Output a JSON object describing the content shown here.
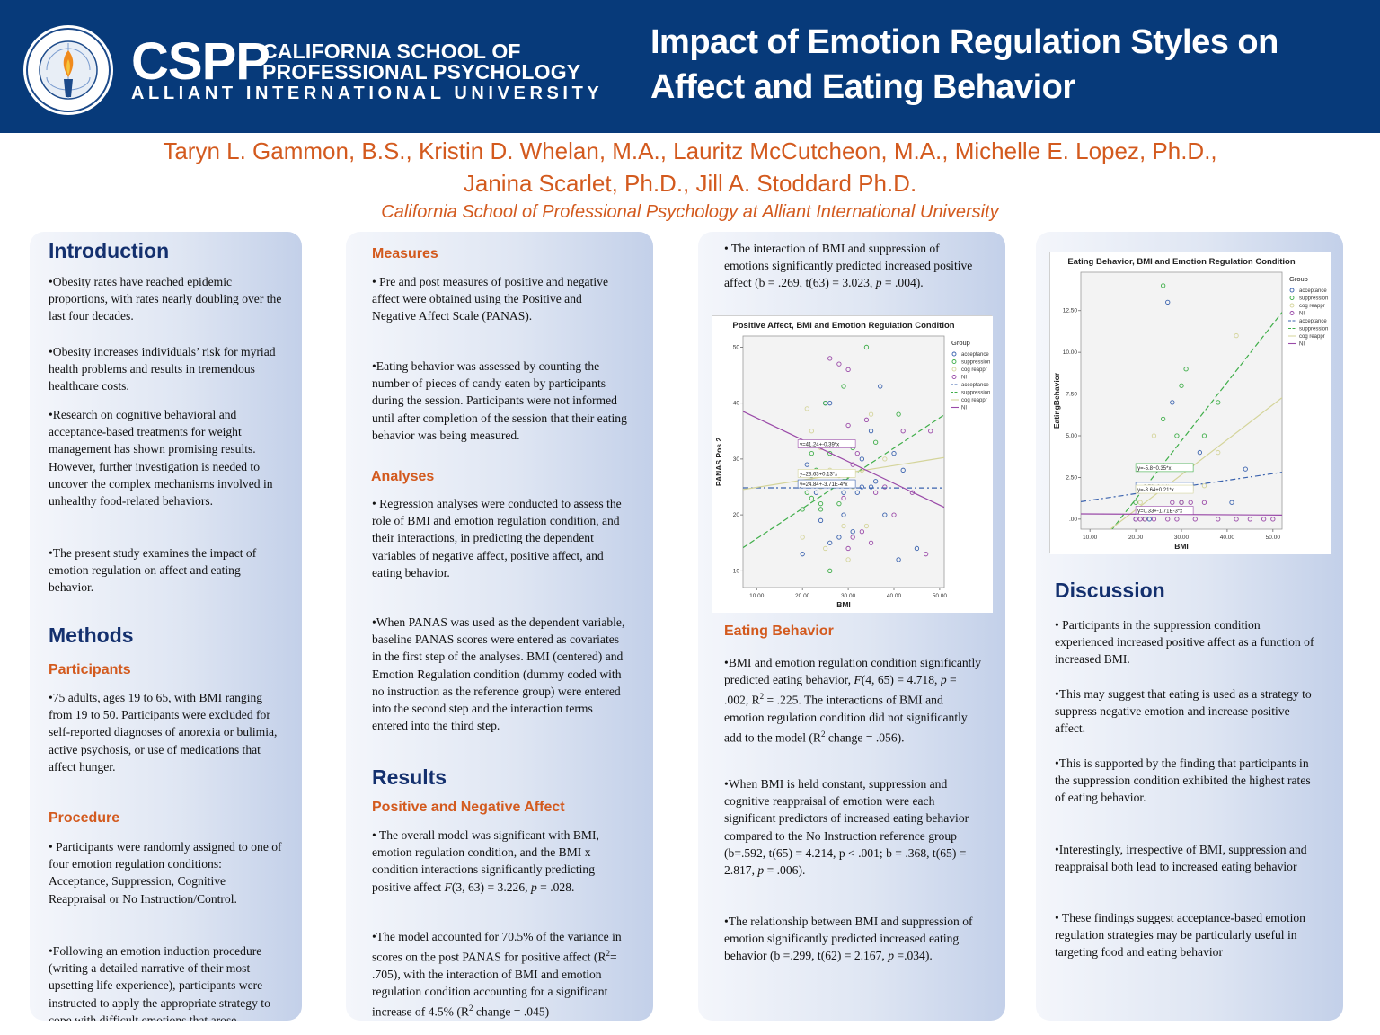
{
  "header": {
    "seal_text": "ALLIANT INTERNATIONAL UNIVERSITY",
    "cspp": "CSPP",
    "school_line1": "CALIFORNIA SCHOOL OF",
    "school_line2": "PROFESSIONAL PSYCHOLOGY",
    "university": "ALLIANT INTERNATIONAL UNIVERSITY",
    "title_line1": "Impact  of Emotion Regulation Styles on",
    "title_line2": "Affect and Eating Behavior",
    "colors": {
      "banner": "#073a7a",
      "accent": "#d35a1e",
      "heading": "#14306e"
    }
  },
  "authors": {
    "line1": "Taryn L. Gammon, B.S., Kristin D. Whelan, M.A., Lauritz McCutcheon, M.A., Michelle E. Lopez, Ph.D.,",
    "line2": "Janina Scarlet, Ph.D., Jill A. Stoddard Ph.D.",
    "affiliation": "California School of Professional Psychology at Alliant International University"
  },
  "col1": {
    "introduction": "Introduction",
    "intro_b1": "•Obesity rates have reached epidemic proportions, with rates nearly doubling over the last four decades.",
    "intro_b2": "•Obesity increases individuals’ risk for myriad health problems and results in tremendous healthcare costs.",
    "intro_b3": "•Research on cognitive behavioral and acceptance-based treatments for weight management has shown promising results. However, further investigation is needed to uncover the complex mechanisms involved in unhealthy food-related behaviors.",
    "intro_b4": "•The present study examines the impact of emotion regulation on affect and eating behavior.",
    "methods": "Methods",
    "participants": "Participants",
    "participants_b1": "•75 adults, ages 19 to 65, with BMI ranging from 19 to 50. Participants were excluded for self-reported diagnoses of anorexia or bulimia, active psychosis, or use of medications that affect hunger.",
    "procedure": "Procedure",
    "procedure_b1": "• Participants were randomly assigned to one of four emotion regulation conditions: Acceptance, Suppression, Cognitive Reappraisal or No Instruction/Control.",
    "procedure_b2": "•Following an emotion induction procedure (writing a detailed narrative of their most upsetting life experience), participants were instructed to apply the appropriate strategy to cope with difficult emotions that arose."
  },
  "col2": {
    "measures": "Measures",
    "measures_b1": "• Pre and post measures of positive and negative affect were obtained using the Positive and Negative Affect Scale (PANAS).",
    "measures_b2": "•Eating behavior was assessed by counting the number of pieces of candy eaten by participants during the session.  Participants were not informed until after completion of the session that their eating behavior was being measured.",
    "analyses": "Analyses",
    "analyses_b1": "• Regression analyses were conducted to assess the role of BMI and emotion regulation condition, and their interactions, in predicting the dependent variables of negative affect, positive affect, and eating behavior.",
    "analyses_b2": "•When PANAS was used as the dependent variable, baseline PANAS scores were entered as covariates in the first step of the analyses.  BMI (centered) and Emotion Regulation condition (dummy coded with no instruction as the reference group) were entered into the second step and the interaction terms entered into the third step.",
    "results": "Results",
    "pos_neg": "Positive and Negative Affect",
    "results_b1_pre": "• The overall model was significant with BMI, emotion regulation condition, and the BMI x condition interactions significantly predicting positive affect ",
    "results_b1_f": "F",
    "results_b1_mid": "(3, 63) = 3.226, ",
    "results_b1_p": "p",
    "results_b1_post": " = .028.",
    "results_b2_pre": "•The model accounted for 70.5% of the variance in scores on the post PANAS for positive affect (R",
    "results_b2_sup": "2",
    "results_b2_mid": "= .705), with the interaction of BMI and emotion regulation condition accounting for a significant increase of 4.5% (R",
    "results_b2_sup2": "2",
    "results_b2_post": " change = .045)"
  },
  "col3": {
    "interaction_pre": "• The interaction of BMI and suppression of emotions significantly predicted increased positive affect (b = .269, t(63) = 3.023, ",
    "interaction_p": "p",
    "interaction_post": " = .004).",
    "eating_behavior": "Eating Behavior",
    "eb_b1_pre": "•BMI and emotion regulation condition significantly predicted eating behavior, ",
    "eb_b1_f": "F",
    "eb_b1_mid": "(4, 65) = 4.718, ",
    "eb_b1_p": "p",
    "eb_b1_mid2": "  = .002, R",
    "eb_b1_sup": "2",
    "eb_b1_mid3": " = .225. The interactions of BMI and emotion regulation condition did not significantly add to the model (R",
    "eb_b1_sup2": "2",
    "eb_b1_post": " change = .056).",
    "eb_b2_pre": "•When BMI is held constant, suppression and cognitive reappraisal of emotion were each significant predictors of increased eating behavior compared to the No Instruction reference group (b=.592, t(65) = 4.214, p < .001; b = .368, t(65) = 2.817, ",
    "eb_b2_p": "p",
    "eb_b2_post": " = .006).",
    "eb_b3_pre": "•The relationship between BMI and suppression of emotion significantly predicted increased eating behavior (b =.299, t(62) = 2.167, ",
    "eb_b3_p": "p",
    "eb_b3_post": " =.034)."
  },
  "col4": {
    "discussion": "Discussion",
    "disc_b1": "• Participants in the suppression condition experienced increased positive affect as a function of increased BMI.",
    "disc_b2": "•This may suggest that eating is used as a strategy to suppress negative emotion and increase positive affect.",
    "disc_b3": "•This is supported by the finding that participants in the suppression condition exhibited the highest rates of eating behavior.",
    "disc_b4": "•Interestingly, irrespective of BMI, suppression and reappraisal both lead to increased eating behavior",
    "disc_b5": "• These findings suggest acceptance-based emotion regulation strategies may be particularly useful in targeting food and eating behavior"
  },
  "chart_data": [
    {
      "type": "scatter",
      "title": "Positive Affect, BMI and Emotion Regulation Condition",
      "xlabel": "BMI",
      "ylabel": "PANAS Pos 2",
      "xlim": [
        7,
        51
      ],
      "ylim": [
        7,
        52
      ],
      "xticks": [
        "10.00",
        "20.00",
        "30.00",
        "40.00",
        "50.00"
      ],
      "xtick_values": [
        10,
        20,
        30,
        40,
        50
      ],
      "yticks": [
        "10",
        "20",
        "30",
        "40",
        "50"
      ],
      "ytick_values": [
        10,
        20,
        30,
        40,
        50
      ],
      "legend_title": "Group",
      "legend_position": "right",
      "legend": [
        "acceptance",
        "suppression",
        "cog reappr",
        "NI",
        "acceptance",
        "suppression",
        "cog reappr",
        "NI"
      ],
      "series": [
        {
          "name": "acceptance",
          "color": "#3a62ae",
          "points": [
            [
              25,
              40
            ],
            [
              26,
              40
            ],
            [
              29,
              20
            ],
            [
              28,
              16
            ],
            [
              32,
              24
            ],
            [
              35,
              35
            ],
            [
              37,
              43
            ],
            [
              33,
              25
            ],
            [
              23,
              24
            ],
            [
              26,
              15
            ],
            [
              20,
              13
            ],
            [
              41,
              12
            ],
            [
              42,
              28
            ],
            [
              45,
              14
            ],
            [
              38,
              20
            ],
            [
              31,
              17
            ],
            [
              35,
              25
            ],
            [
              22,
              27
            ],
            [
              21,
              29
            ],
            [
              27,
              33
            ],
            [
              24,
              19
            ],
            [
              33,
              30
            ],
            [
              36,
              26
            ],
            [
              29,
              24
            ],
            [
              40,
              31
            ]
          ]
        },
        {
          "name": "suppression",
          "color": "#3fae49",
          "points": [
            [
              34,
              50
            ],
            [
              29,
              43
            ],
            [
              22,
              23
            ],
            [
              26,
              31
            ],
            [
              20,
              21
            ],
            [
              24,
              21
            ],
            [
              31,
              32
            ],
            [
              28,
              22
            ],
            [
              21,
              24
            ],
            [
              22,
              31
            ],
            [
              25,
              40
            ],
            [
              23,
              28
            ],
            [
              21,
              33
            ],
            [
              30,
              27
            ],
            [
              26,
              10
            ],
            [
              36,
              33
            ],
            [
              24,
              22
            ],
            [
              41,
              38
            ],
            [
              29,
              26
            ]
          ]
        },
        {
          "name": "cog reappr",
          "color": "#d4d49a",
          "points": [
            [
              21,
              39
            ],
            [
              22,
              35
            ],
            [
              24,
              32
            ],
            [
              29,
              18
            ],
            [
              31,
              25
            ],
            [
              34,
              18
            ],
            [
              23,
              27
            ],
            [
              20,
              16
            ],
            [
              26,
              28
            ],
            [
              28,
              27
            ],
            [
              24,
              25
            ],
            [
              38,
              30
            ],
            [
              35,
              38
            ],
            [
              22,
              26
            ],
            [
              33,
              28
            ],
            [
              30,
              12
            ],
            [
              25,
              14
            ]
          ]
        },
        {
          "name": "NI",
          "color": "#9a4aa8",
          "points": [
            [
              26,
              48
            ],
            [
              28,
              47
            ],
            [
              30,
              46
            ],
            [
              30,
              36
            ],
            [
              34,
              37
            ],
            [
              32,
              31
            ],
            [
              27,
              33
            ],
            [
              38,
              25
            ],
            [
              42,
              35
            ],
            [
              48,
              35
            ],
            [
              40,
              20
            ],
            [
              35,
              15
            ],
            [
              47,
              13
            ],
            [
              31,
              16
            ],
            [
              29,
              23
            ],
            [
              33,
              17
            ],
            [
              44,
              24
            ],
            [
              31,
              29
            ],
            [
              36,
              24
            ],
            [
              30,
              14
            ]
          ]
        }
      ],
      "fit_lines": [
        {
          "name": "acceptance",
          "label": "y=24.84+-3.71E-4*x",
          "intercept": 24.84,
          "slope": -0.000371,
          "color": "#3a62ae",
          "dash": "6,3,2,3"
        },
        {
          "name": "suppression",
          "label": "",
          "intercept": 10.36,
          "slope": 0.54,
          "color": "#3fae49",
          "dash": "6,3"
        },
        {
          "name": "cog reappr",
          "label": "y=23.63+0.13*x",
          "intercept": 23.63,
          "slope": 0.13,
          "color": "#d4d49a",
          "dash": ""
        },
        {
          "name": "NI",
          "label": "y=41.24+-0.39*x",
          "intercept": 41.24,
          "slope": -0.39,
          "color": "#9a4aa8",
          "dash": ""
        }
      ]
    },
    {
      "type": "scatter",
      "title": "Eating Behavior, BMI and Emotion Regulation Condition",
      "xlabel": "BMI",
      "ylabel": "EatingBehavior",
      "xlim": [
        8,
        52
      ],
      "ylim": [
        -0.6,
        14.8
      ],
      "xticks": [
        "10.00",
        "20.00",
        "30.00",
        "40.00",
        "50.00"
      ],
      "xtick_values": [
        10,
        20,
        30,
        40,
        50
      ],
      "yticks": [
        ".00",
        "2.50",
        "5.00",
        "7.50",
        "10.00",
        "12.50"
      ],
      "ytick_values": [
        0,
        2.5,
        5,
        7.5,
        10,
        12.5
      ],
      "legend_title": "Group",
      "legend_position": "right",
      "legend": [
        "acceptance",
        "suppression",
        "cog reappr",
        "NI",
        "acceptance",
        "suppression",
        "cog reappr",
        "NI"
      ],
      "series": [
        {
          "name": "acceptance",
          "color": "#3a62ae",
          "points": [
            [
              27,
              13
            ],
            [
              28,
              7
            ],
            [
              21,
              2
            ],
            [
              23,
              0
            ],
            [
              25,
              3
            ],
            [
              34,
              4
            ],
            [
              41,
              1
            ],
            [
              44,
              3
            ],
            [
              30,
              1
            ],
            [
              20,
              0
            ]
          ]
        },
        {
          "name": "suppression",
          "color": "#3fae49",
          "points": [
            [
              26,
              14
            ],
            [
              31,
              9
            ],
            [
              30,
              8
            ],
            [
              26,
              6
            ],
            [
              38,
              7
            ],
            [
              24,
              3
            ],
            [
              29,
              5
            ],
            [
              20,
              1
            ],
            [
              35,
              5
            ],
            [
              22,
              0
            ]
          ]
        },
        {
          "name": "cog reappr",
          "color": "#d4d49a",
          "points": [
            [
              42,
              11
            ],
            [
              24,
              5
            ],
            [
              21,
              3
            ],
            [
              22,
              3
            ],
            [
              30,
              1
            ],
            [
              35,
              2
            ],
            [
              26,
              2
            ],
            [
              23,
              2
            ],
            [
              38,
              4
            ],
            [
              21,
              1
            ]
          ]
        },
        {
          "name": "NI",
          "color": "#9a4aa8",
          "points": [
            [
              20,
              0
            ],
            [
              21,
              0
            ],
            [
              22,
              0
            ],
            [
              24,
              0
            ],
            [
              28,
              1
            ],
            [
              30,
              1
            ],
            [
              32,
              1
            ],
            [
              35,
              1
            ],
            [
              45,
              0
            ],
            [
              48,
              0
            ],
            [
              50,
              0
            ],
            [
              33,
              0
            ],
            [
              38,
              0
            ],
            [
              42,
              0
            ],
            [
              27,
              0
            ],
            [
              29,
              0
            ]
          ]
        }
      ],
      "fit_lines": [
        {
          "name": "acceptance",
          "label": "y=0.73+0.04*x",
          "intercept": 0.73,
          "slope": 0.04,
          "color": "#3a62ae",
          "dash": "6,3,2,3"
        },
        {
          "name": "suppression",
          "label": "y=-5.8+0.35*x",
          "intercept": -5.8,
          "slope": 0.35,
          "color": "#3fae49",
          "dash": "6,3"
        },
        {
          "name": "cog reappr",
          "label": "y=-3.64+0.21*x",
          "intercept": -3.64,
          "slope": 0.21,
          "color": "#d4d49a",
          "dash": ""
        },
        {
          "name": "NI",
          "label": "y=0.33+-1.71E-3*x",
          "intercept": 0.33,
          "slope": -0.00171,
          "color": "#9a4aa8",
          "dash": ""
        }
      ]
    }
  ]
}
